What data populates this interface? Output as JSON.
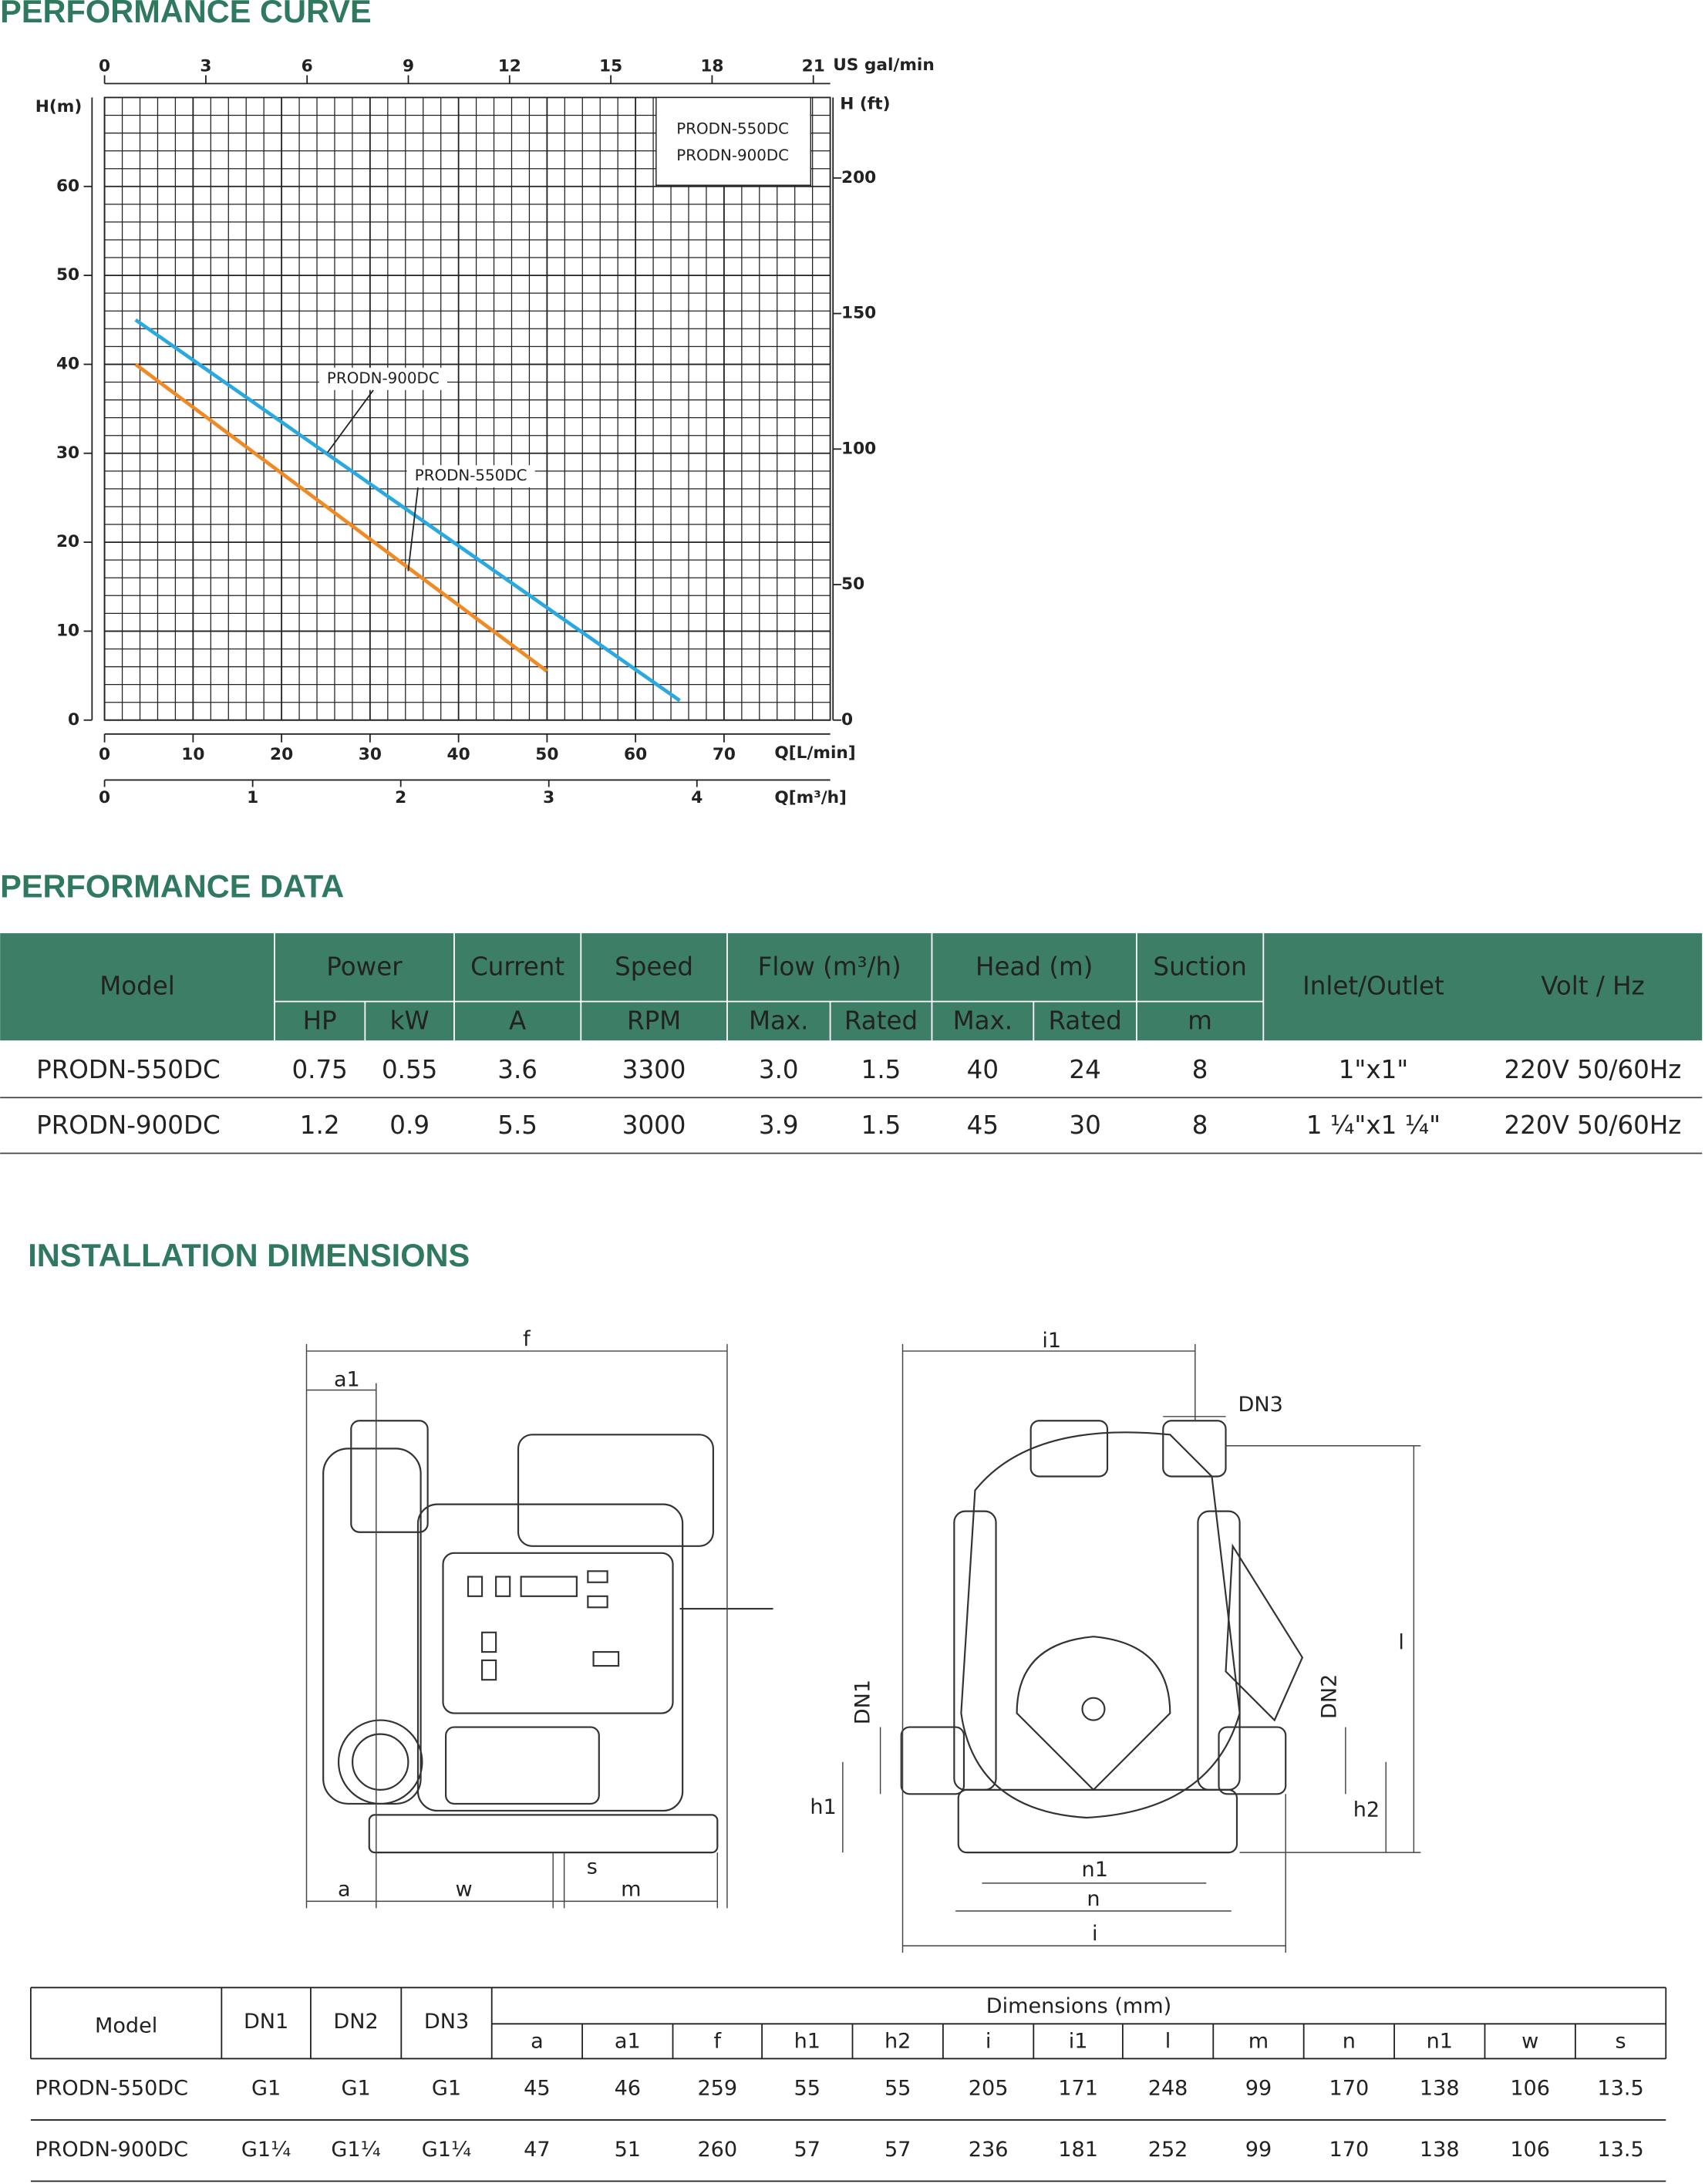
{
  "chart_data": {
    "type": "line",
    "title": "PERFORMANCE CURVE",
    "xlabel": "Q[L/min]",
    "ylabel": "H(m)",
    "xlim": [
      0,
      82
    ],
    "xticks": [
      0,
      10,
      20,
      30,
      40,
      50,
      60,
      70
    ],
    "ylim": [
      0,
      70
    ],
    "yticks": [
      0,
      10,
      20,
      30,
      40,
      50,
      60
    ],
    "x2label": "US gal/min",
    "x2lim": [
      0,
      21.5
    ],
    "x2ticks": [
      0,
      3,
      6,
      9,
      12,
      15,
      18,
      21
    ],
    "x3label": "Q[m³/h]",
    "x3lim": [
      0,
      4.9
    ],
    "x3ticks": [
      0,
      1,
      2,
      3,
      4
    ],
    "y2label": "H (ft)",
    "y2lim": [
      0,
      229.7
    ],
    "y2ticks": [
      0,
      50,
      100,
      150,
      200
    ],
    "grid": true,
    "legend": "upper right",
    "series": [
      {
        "name": "PRODN-550DC",
        "color": "#f08a24",
        "x": [
          3.5,
          50
        ],
        "values": [
          40,
          5.5
        ]
      },
      {
        "name": "PRODN-900DC",
        "color": "#29a9e0",
        "x": [
          3.5,
          65
        ],
        "values": [
          45,
          2.2
        ]
      }
    ]
  },
  "performance_data": {
    "title": "PERFORMANCE DATA",
    "header": {
      "model": "Model",
      "groups": [
        {
          "label": "Power",
          "subs": [
            "HP",
            "kW"
          ]
        },
        {
          "label": "Current",
          "subs": [
            "A"
          ]
        },
        {
          "label": "Speed",
          "subs": [
            "RPM"
          ]
        },
        {
          "label": "Flow (m³/h)",
          "subs": [
            "Max.",
            "Rated"
          ]
        },
        {
          "label": "Head (m)",
          "subs": [
            "Max.",
            "Rated"
          ]
        },
        {
          "label": "Suction",
          "subs": [
            "m"
          ]
        }
      ],
      "inlet": "Inlet/Outlet",
      "volt": "Volt / Hz"
    },
    "rows": [
      [
        "PRODN-550DC",
        "0.75",
        "0.55",
        "3.6",
        "3300",
        "3.0",
        "1.5",
        "40",
        "24",
        "8",
        "1\"x1\"",
        "220V  50/60Hz"
      ],
      [
        "PRODN-900DC",
        "1.2",
        "0.9",
        "5.5",
        "3000",
        "3.9",
        "1.5",
        "45",
        "30",
        "8",
        "1 ¼\"x1 ¼\"",
        "220V  50/60Hz"
      ]
    ]
  },
  "installation": {
    "title": "INSTALLATION DIMENSIONS",
    "drawing": {
      "f": "f",
      "a1": "a1",
      "a": "a",
      "w": "w",
      "s": "s",
      "m": "m",
      "i1": "i1",
      "dn3": "DN3",
      "l": "l",
      "dn1": "DN1",
      "dn2": "DN2",
      "h1": "h1",
      "h2": "h2",
      "n1": "n1",
      "n": "n",
      "i": "i"
    },
    "table": {
      "header": {
        "model": "Model",
        "dn": [
          "DN1",
          "DN2",
          "DN3"
        ],
        "dimensions": "Dimensions  (mm)",
        "subs": [
          "a",
          "a1",
          "f",
          "h1",
          "h2",
          "i",
          "i1",
          "l",
          "m",
          "n",
          "n1",
          "w",
          "s"
        ]
      },
      "rows": [
        [
          "PRODN-550DC",
          "G1",
          "G1",
          "G1",
          "45",
          "46",
          "259",
          "55",
          "55",
          "205",
          "171",
          "248",
          "99",
          "170",
          "138",
          "106",
          "13.5"
        ],
        [
          "PRODN-900DC",
          "G1¼",
          "G1¼",
          "G1¼",
          "47",
          "51",
          "260",
          "57",
          "57",
          "236",
          "181",
          "252",
          "99",
          "170",
          "138",
          "106",
          "13.5"
        ]
      ]
    }
  }
}
